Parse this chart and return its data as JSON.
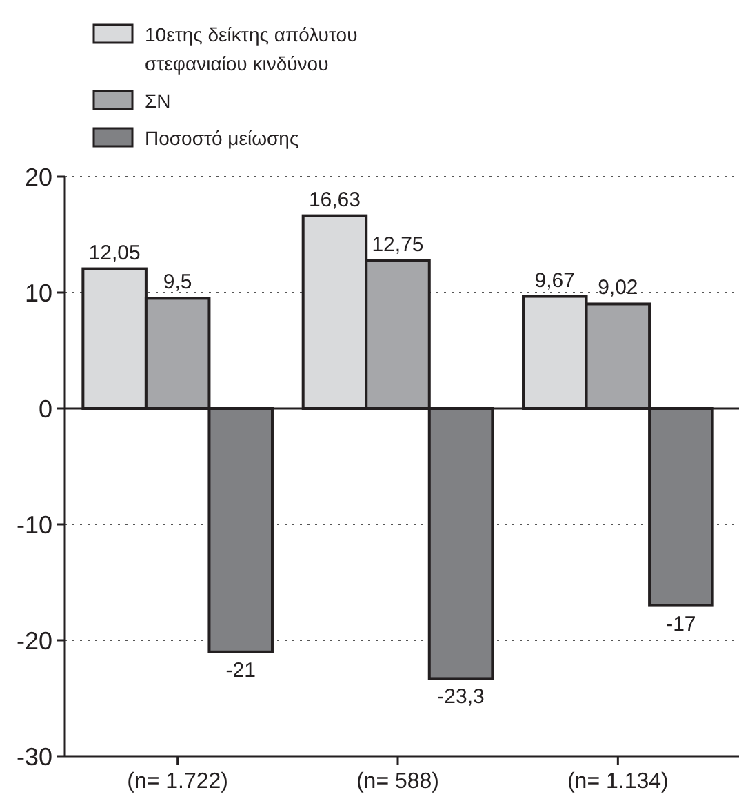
{
  "chart_data": {
    "type": "bar",
    "categories": [
      "(n= 1.722)",
      "(n= 588)",
      "(n= 1.134)"
    ],
    "series": [
      {
        "name": "10ετης δείκτης απόλυτου στεφανιαίου κινδύνου",
        "color": "#d9dadc",
        "values": [
          12.05,
          16.63,
          9.67
        ],
        "value_labels": [
          "12,05",
          "16,63",
          "9,67"
        ]
      },
      {
        "name": "ΣΝ",
        "color": "#a6a7aa",
        "values": [
          9.5,
          12.75,
          9.02
        ],
        "value_labels": [
          "9,5",
          "12,75",
          "9,02"
        ]
      },
      {
        "name": "Ποσοστό μείωσης",
        "color": "#808184",
        "values": [
          -21,
          -23.3,
          -17
        ],
        "value_labels": [
          "-21",
          "-23,3",
          "-17"
        ]
      }
    ],
    "ylim": [
      -30,
      20
    ],
    "yticks": [
      -30,
      -20,
      -10,
      0,
      10,
      20
    ],
    "grid": "y",
    "legend": "top left"
  }
}
